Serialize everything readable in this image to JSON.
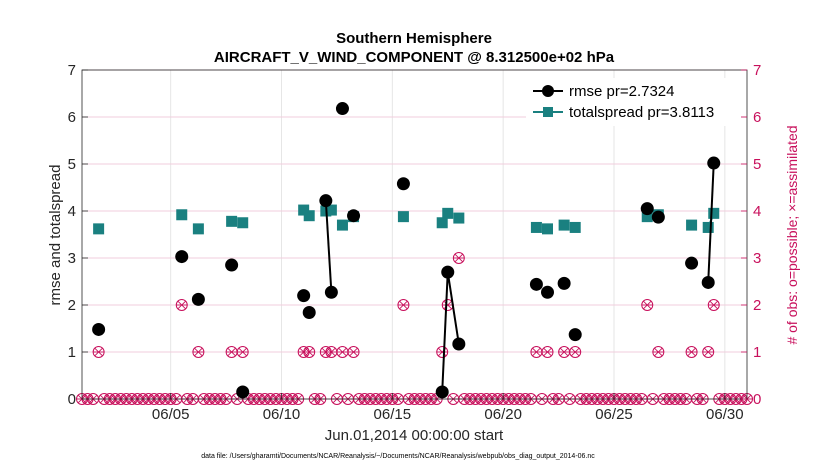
{
  "chart_data": {
    "type": "line",
    "title": "Southern Hemisphere",
    "subtitle": "AIRCRAFT_V_WIND_COMPONENT @ 8.312500e+02 hPa",
    "xlabel": "Jun.01,2014 00:00:00 start",
    "ylabel": "rmse and totalspread",
    "y2label": "# of obs: o=possible; ×=assimilated",
    "xlim": [
      1,
      31
    ],
    "ylim": [
      0,
      7
    ],
    "y2lim": [
      0,
      7
    ],
    "x_ticks": [
      5,
      10,
      15,
      20,
      25,
      30
    ],
    "x_tick_labels": [
      "06/05",
      "06/10",
      "06/15",
      "06/20",
      "06/25",
      "06/30"
    ],
    "y_ticks": [
      0,
      1,
      2,
      3,
      4,
      5,
      6,
      7
    ],
    "y_tick_labels": [
      "0",
      "1",
      "2",
      "3",
      "4",
      "5",
      "6",
      "7"
    ],
    "y2_ticks": [
      0,
      1,
      2,
      3,
      4,
      5,
      6,
      7
    ],
    "y2_tick_labels": [
      "0",
      "1",
      "2",
      "3",
      "4",
      "5",
      "6",
      "7"
    ],
    "grid": true,
    "legend_position": "top-right",
    "series": [
      {
        "name": "rmse pr=2.7324",
        "color": "#000000",
        "marker": "circle",
        "points": [
          [
            1.75,
            1.48
          ],
          [
            5.5,
            3.03
          ],
          [
            6.25,
            2.12
          ],
          [
            7.75,
            2.85
          ],
          [
            8.25,
            0.15
          ],
          [
            11.0,
            2.2
          ],
          [
            11.25,
            1.84
          ],
          [
            12.0,
            4.22
          ],
          [
            12.25,
            2.27
          ],
          [
            12.75,
            6.18
          ],
          [
            13.25,
            3.9
          ],
          [
            15.5,
            4.58
          ],
          [
            17.25,
            0.15
          ],
          [
            17.5,
            2.7
          ],
          [
            18.0,
            1.17
          ],
          [
            21.5,
            2.44
          ],
          [
            22.0,
            2.27
          ],
          [
            22.75,
            2.46
          ],
          [
            23.25,
            1.37
          ],
          [
            26.5,
            4.05
          ],
          [
            27.0,
            3.87
          ],
          [
            28.5,
            2.89
          ],
          [
            29.25,
            2.48
          ],
          [
            29.5,
            5.02
          ]
        ],
        "segments": [
          [
            [
              12.0,
              4.22
            ],
            [
              12.25,
              2.27
            ]
          ],
          [
            [
              17.25,
              0.15
            ],
            [
              17.5,
              2.7
            ],
            [
              18.0,
              1.17
            ]
          ],
          [
            [
              29.25,
              2.48
            ],
            [
              29.5,
              5.02
            ]
          ]
        ]
      },
      {
        "name": "totalspread pr=3.8113",
        "color": "#1a8080",
        "marker": "square",
        "points": [
          [
            1.75,
            3.62
          ],
          [
            5.5,
            3.92
          ],
          [
            6.25,
            3.62
          ],
          [
            7.75,
            3.78
          ],
          [
            8.25,
            3.75
          ],
          [
            11.0,
            4.02
          ],
          [
            11.25,
            3.9
          ],
          [
            12.0,
            4.0
          ],
          [
            12.25,
            4.02
          ],
          [
            12.75,
            3.7
          ],
          [
            13.25,
            3.88
          ],
          [
            15.5,
            3.88
          ],
          [
            17.25,
            3.75
          ],
          [
            17.5,
            3.95
          ],
          [
            18.0,
            3.85
          ],
          [
            21.5,
            3.65
          ],
          [
            22.0,
            3.62
          ],
          [
            22.75,
            3.7
          ],
          [
            23.25,
            3.65
          ],
          [
            26.5,
            3.88
          ],
          [
            27.0,
            3.92
          ],
          [
            28.5,
            3.7
          ],
          [
            29.25,
            3.65
          ],
          [
            29.5,
            3.95
          ]
        ],
        "segments": [
          [
            [
              12.0,
              4.0
            ],
            [
              12.25,
              4.02
            ]
          ],
          [
            [
              29.25,
              3.65
            ],
            [
              29.5,
              3.95
            ]
          ]
        ]
      },
      {
        "name": "# of obs",
        "axis": "right",
        "color": "#c8105c",
        "marker": "circle-x",
        "nonzero": [
          [
            1.75,
            1
          ],
          [
            5.5,
            2
          ],
          [
            6.25,
            1
          ],
          [
            7.75,
            1
          ],
          [
            8.25,
            1
          ],
          [
            11.0,
            1
          ],
          [
            11.25,
            1
          ],
          [
            12.0,
            1
          ],
          [
            12.25,
            1
          ],
          [
            12.75,
            1
          ],
          [
            13.25,
            1
          ],
          [
            15.5,
            2
          ],
          [
            17.25,
            1
          ],
          [
            17.5,
            2
          ],
          [
            18.0,
            3
          ],
          [
            21.5,
            1
          ],
          [
            22.0,
            1
          ],
          [
            22.75,
            1
          ],
          [
            23.25,
            1
          ],
          [
            26.5,
            2
          ],
          [
            27.0,
            1
          ],
          [
            28.5,
            1
          ],
          [
            29.25,
            1
          ],
          [
            29.5,
            2
          ]
        ],
        "step": 0.25
      }
    ],
    "footnote": "data file: /Users/gharamti/Documents/NCAR/Reanalysis/~/Documents/NCAR/Reanalysis/webpub/obs_diag_output_2014-06.nc"
  }
}
